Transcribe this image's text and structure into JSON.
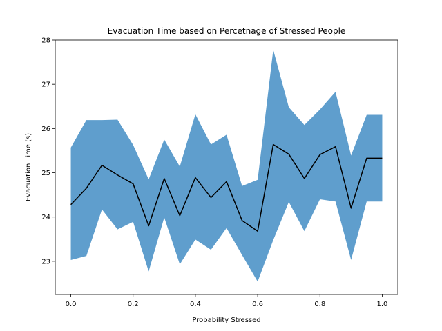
{
  "chart_data": {
    "type": "area",
    "title": "Evacuation Time based on Percetnage of Stressed People",
    "xlabel": "Probability Stressed",
    "ylabel": "Evacuation Time (s)",
    "xlim": [
      -0.05,
      1.05
    ],
    "ylim": [
      22.25,
      28.0
    ],
    "x_ticks": [
      0.0,
      0.2,
      0.4,
      0.6,
      0.8,
      1.0
    ],
    "x_tick_labels": [
      "0.0",
      "0.2",
      "0.4",
      "0.6",
      "0.8",
      "1.0"
    ],
    "y_ticks": [
      23,
      24,
      25,
      26,
      27,
      28
    ],
    "y_tick_labels": [
      "23",
      "24",
      "25",
      "26",
      "27",
      "28"
    ],
    "grid": false,
    "band_color": "#5f9ecd",
    "line_color": "#000000",
    "x": [
      0.0,
      0.05,
      0.1,
      0.15,
      0.2,
      0.25,
      0.3,
      0.35,
      0.4,
      0.45,
      0.5,
      0.55,
      0.6,
      0.65,
      0.7,
      0.75,
      0.8,
      0.85,
      0.9,
      0.95,
      1.0
    ],
    "series": [
      {
        "role": "mean",
        "values": [
          24.28,
          24.65,
          25.17,
          24.95,
          24.75,
          23.8,
          24.87,
          24.03,
          24.89,
          24.44,
          24.8,
          23.92,
          23.68,
          25.64,
          25.42,
          24.87,
          25.41,
          25.59,
          24.2,
          25.33,
          25.33
        ]
      },
      {
        "role": "upper",
        "values": [
          25.57,
          26.19,
          26.19,
          26.2,
          25.63,
          24.85,
          25.75,
          25.14,
          26.32,
          25.64,
          25.86,
          24.7,
          24.84,
          27.78,
          26.48,
          26.08,
          26.43,
          26.83,
          25.39,
          26.31,
          26.31
        ]
      },
      {
        "role": "lower",
        "values": [
          23.03,
          23.12,
          24.17,
          23.72,
          23.89,
          22.77,
          23.99,
          22.93,
          23.49,
          23.26,
          23.75,
          23.14,
          22.54,
          23.48,
          24.34,
          23.68,
          24.4,
          24.35,
          23.03,
          24.35,
          24.35
        ]
      }
    ]
  }
}
